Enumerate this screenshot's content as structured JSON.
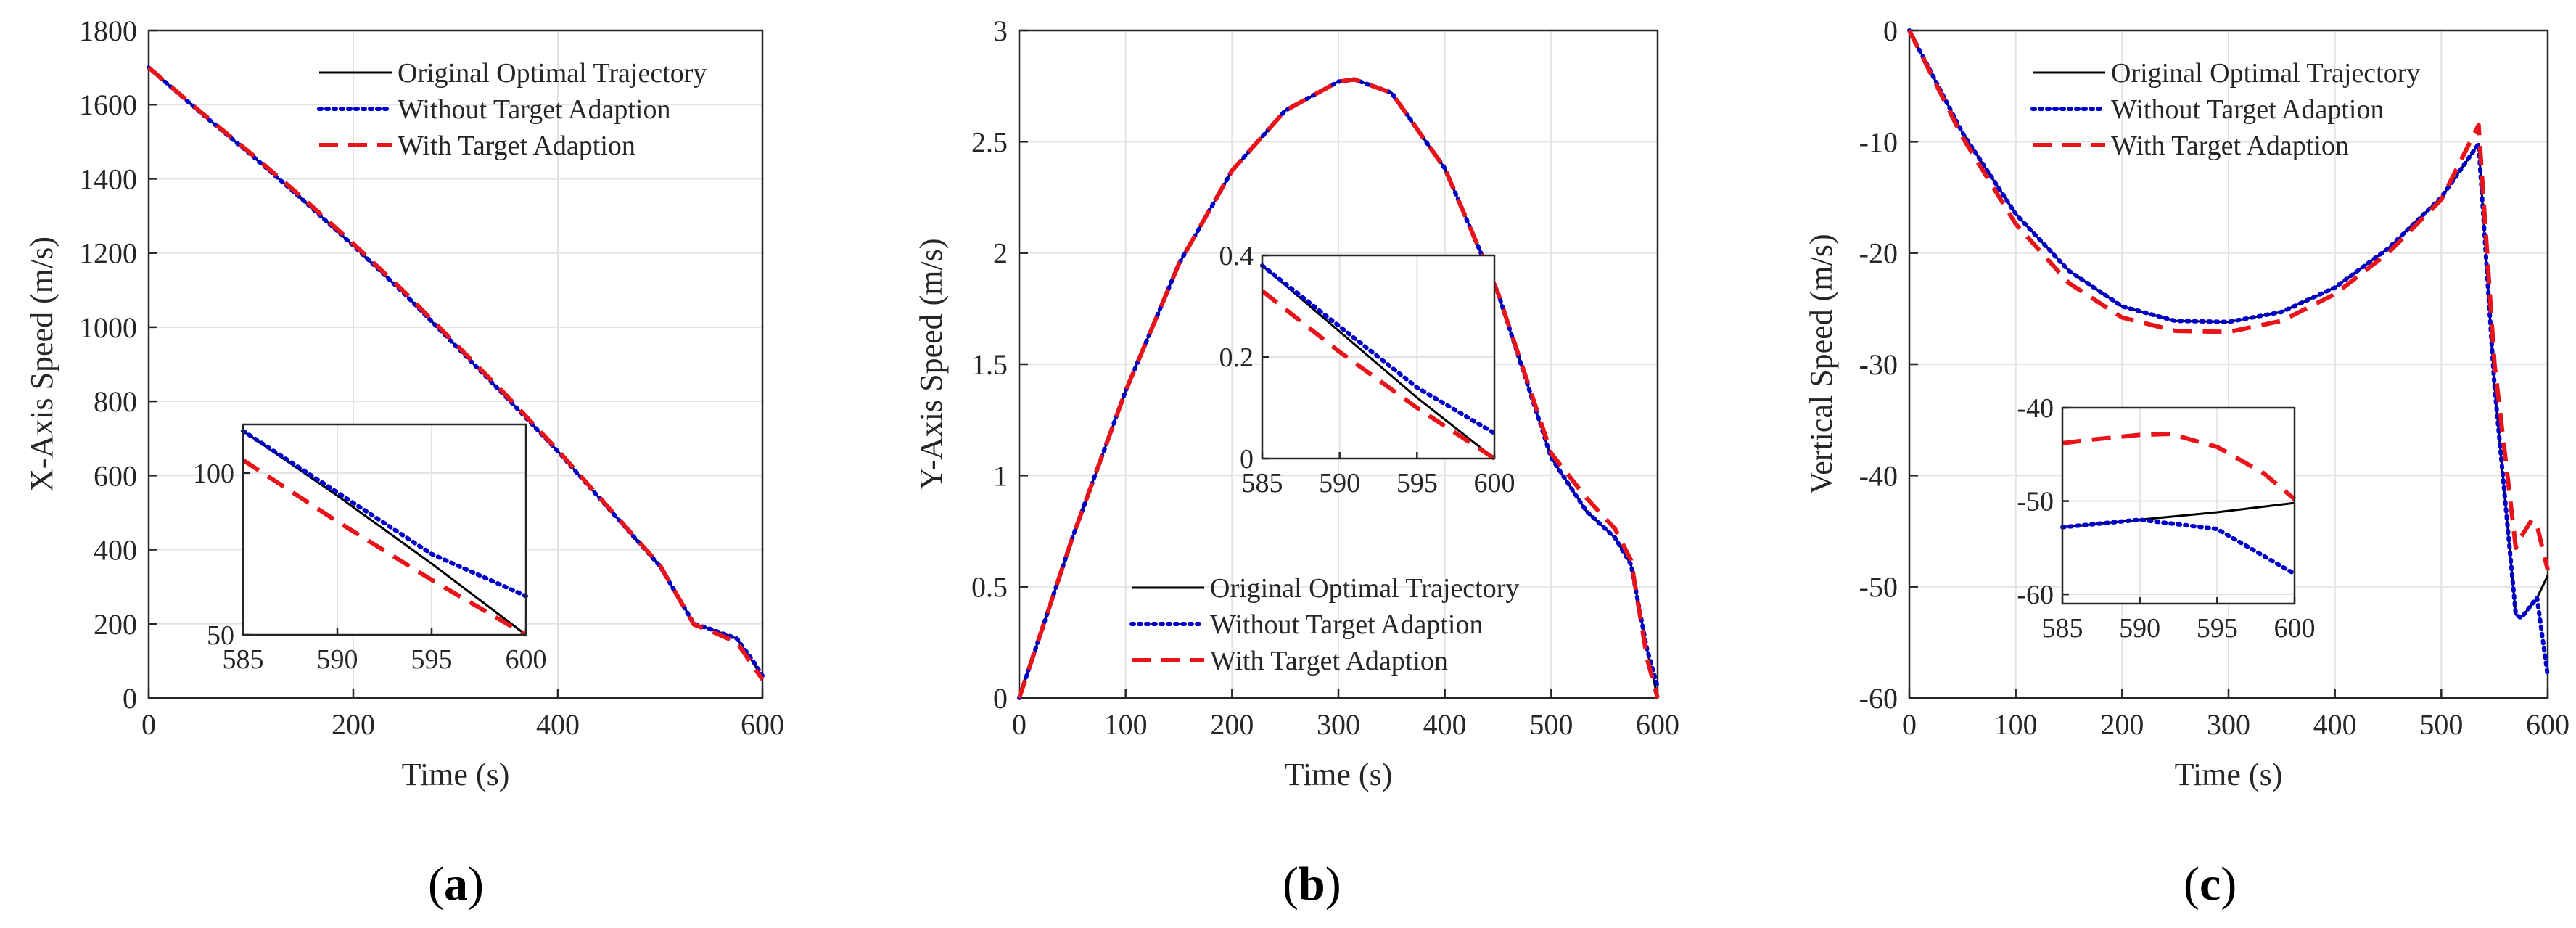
{
  "colors": {
    "original": "#000000",
    "without": "#0000cc",
    "with": "#e8141a",
    "grid": "#e3e3e3",
    "axis": "#262626"
  },
  "legend": [
    {
      "key": "original",
      "label": "Original Optimal Trajectory",
      "style": "solid"
    },
    {
      "key": "without",
      "label": "Without Target Adaption",
      "style": "dotted"
    },
    {
      "key": "with",
      "label": "With Target Adaption",
      "style": "dashed"
    }
  ],
  "panels": [
    {
      "open": "(",
      "letter": "a",
      "close": ")"
    },
    {
      "open": "(",
      "letter": "b",
      "close": ")"
    },
    {
      "open": "(",
      "letter": "c",
      "close": ")"
    }
  ],
  "chart_data": [
    {
      "type": "line",
      "xlabel": "Time (s)",
      "ylabel": "X-Axis Speed (m/s)",
      "xlim": [
        0,
        600
      ],
      "ylim": [
        0,
        1800
      ],
      "xticks": [
        0,
        200,
        400,
        600
      ],
      "yticks": [
        0,
        200,
        400,
        600,
        800,
        1000,
        1200,
        1400,
        1600,
        1800
      ],
      "grid": true,
      "legend_position": "top-right",
      "series": [
        {
          "name": "Original Optimal Trajectory",
          "key": "original",
          "x": [
            0,
            50,
            100,
            150,
            200,
            250,
            300,
            350,
            400,
            450,
            500,
            533,
            550,
            575,
            590,
            600
          ],
          "y": [
            1700,
            1580,
            1465,
            1345,
            1220,
            1090,
            950,
            810,
            665,
            510,
            355,
            200,
            185,
            160,
            100,
            55
          ]
        },
        {
          "name": "Without Target Adaption",
          "key": "without",
          "x": [
            0,
            50,
            100,
            150,
            200,
            250,
            300,
            350,
            400,
            450,
            500,
            533,
            550,
            575,
            590,
            600
          ],
          "y": [
            1700,
            1580,
            1465,
            1345,
            1220,
            1090,
            950,
            810,
            665,
            510,
            355,
            200,
            185,
            160,
            103,
            60
          ]
        },
        {
          "name": "With Target Adaption",
          "key": "with",
          "x": [
            0,
            50,
            100,
            150,
            200,
            250,
            300,
            350,
            400,
            450,
            500,
            533,
            550,
            575,
            590,
            600
          ],
          "y": [
            1700,
            1582,
            1468,
            1350,
            1225,
            1095,
            955,
            815,
            668,
            512,
            357,
            198,
            180,
            150,
            90,
            50
          ]
        }
      ],
      "inset": {
        "xlim": [
          585,
          600
        ],
        "ylim": [
          50,
          115
        ],
        "xticks": [
          585,
          590,
          595,
          600
        ],
        "yticks": [
          50,
          100
        ],
        "series": [
          {
            "key": "original",
            "x": [
              585,
              590,
              595,
              600
            ],
            "y": [
              113,
              93,
              72,
              50
            ]
          },
          {
            "key": "without",
            "x": [
              585,
              590,
              595,
              600
            ],
            "y": [
              113,
              94,
              75,
              62
            ]
          },
          {
            "key": "with",
            "x": [
              585,
              590,
              595,
              600
            ],
            "y": [
              104,
              85,
              67,
              50
            ]
          }
        ]
      }
    },
    {
      "type": "line",
      "xlabel": "Time (s)",
      "ylabel": "Y-Axis Speed (m/s)",
      "xlim": [
        0,
        600
      ],
      "ylim": [
        0,
        3
      ],
      "xticks": [
        0,
        100,
        200,
        300,
        400,
        500,
        600
      ],
      "yticks": [
        0,
        0.5,
        1,
        1.5,
        2,
        2.5,
        3
      ],
      "grid": true,
      "legend_position": "bottom-right",
      "series": [
        {
          "name": "Original Optimal Trajectory",
          "key": "original",
          "x": [
            0,
            50,
            100,
            150,
            200,
            250,
            300,
            315,
            350,
            400,
            450,
            500,
            533,
            560,
            575,
            590,
            600
          ],
          "y": [
            0,
            0.72,
            1.38,
            1.95,
            2.37,
            2.64,
            2.77,
            2.78,
            2.72,
            2.38,
            1.82,
            1.08,
            0.84,
            0.72,
            0.6,
            0.22,
            0.0
          ]
        },
        {
          "name": "Without Target Adaption",
          "key": "without",
          "x": [
            0,
            50,
            100,
            150,
            200,
            250,
            300,
            315,
            350,
            400,
            450,
            500,
            533,
            560,
            575,
            590,
            600
          ],
          "y": [
            0,
            0.72,
            1.38,
            1.95,
            2.37,
            2.64,
            2.77,
            2.78,
            2.72,
            2.38,
            1.82,
            1.08,
            0.84,
            0.72,
            0.6,
            0.22,
            0.05
          ]
        },
        {
          "name": "With Target Adaption",
          "key": "with",
          "x": [
            0,
            50,
            100,
            150,
            200,
            250,
            300,
            315,
            350,
            400,
            450,
            500,
            533,
            560,
            575,
            590,
            600
          ],
          "y": [
            0,
            0.72,
            1.38,
            1.95,
            2.37,
            2.64,
            2.77,
            2.78,
            2.72,
            2.38,
            1.82,
            1.1,
            0.9,
            0.76,
            0.62,
            0.18,
            0.0
          ]
        }
      ],
      "inset": {
        "xlim": [
          585,
          600
        ],
        "ylim": [
          0,
          0.4
        ],
        "xticks": [
          585,
          590,
          595,
          600
        ],
        "yticks": [
          0,
          0.2,
          0.4
        ],
        "series": [
          {
            "key": "original",
            "x": [
              585,
              590,
              595,
              600
            ],
            "y": [
              0.38,
              0.25,
              0.12,
              0.0
            ]
          },
          {
            "key": "without",
            "x": [
              585,
              590,
              595,
              600
            ],
            "y": [
              0.38,
              0.26,
              0.14,
              0.05
            ]
          },
          {
            "key": "with",
            "x": [
              585,
              590,
              595,
              600
            ],
            "y": [
              0.33,
              0.21,
              0.1,
              0.0
            ]
          }
        ]
      }
    },
    {
      "type": "line",
      "xlabel": "Time (s)",
      "ylabel": "Vertical Speed (m/s)",
      "xlim": [
        0,
        600
      ],
      "ylim": [
        -60,
        0
      ],
      "xticks": [
        0,
        100,
        200,
        300,
        400,
        500,
        600
      ],
      "yticks": [
        0,
        -10,
        -20,
        -30,
        -40,
        -50,
        -60
      ],
      "grid": true,
      "legend_position": "top-left",
      "series": [
        {
          "name": "Original Optimal Trajectory",
          "key": "original",
          "x": [
            0,
            50,
            100,
            150,
            200,
            250,
            300,
            350,
            400,
            450,
            500,
            535,
            550,
            570,
            575,
            590,
            600
          ],
          "y": [
            0,
            -9.2,
            -16.5,
            -21.6,
            -24.8,
            -26.1,
            -26.2,
            -25.3,
            -23.1,
            -19.6,
            -15,
            -10.2,
            -32,
            -52.5,
            -52.8,
            -51,
            -49
          ]
        },
        {
          "name": "Without Target Adaption",
          "key": "without",
          "x": [
            0,
            50,
            100,
            150,
            200,
            250,
            300,
            350,
            400,
            450,
            500,
            535,
            550,
            570,
            575,
            590,
            600
          ],
          "y": [
            0,
            -9.2,
            -16.5,
            -21.6,
            -24.8,
            -26.1,
            -26.2,
            -25.3,
            -23.1,
            -19.6,
            -15,
            -10.2,
            -32,
            -52.5,
            -52.8,
            -51,
            -58
          ]
        },
        {
          "name": "With Target Adaption",
          "key": "with",
          "x": [
            0,
            50,
            100,
            150,
            200,
            250,
            300,
            350,
            400,
            450,
            500,
            535,
            550,
            570,
            575,
            585,
            590,
            600
          ],
          "y": [
            0,
            -9.6,
            -17.4,
            -22.7,
            -25.8,
            -27.0,
            -27.1,
            -26.1,
            -23.7,
            -20.0,
            -15.2,
            -8.5,
            -30,
            -46.5,
            -45.5,
            -44,
            -44.5,
            -48.5
          ]
        }
      ],
      "inset": {
        "xlim": [
          585,
          600
        ],
        "ylim": [
          -61,
          -40
        ],
        "xticks": [
          585,
          590,
          595,
          600
        ],
        "yticks": [
          -40,
          -50,
          -60
        ],
        "series": [
          {
            "key": "original",
            "x": [
              585,
              590,
              595,
              600
            ],
            "y": [
              -52.8,
              -52.0,
              -51.2,
              -50.2
            ]
          },
          {
            "key": "without",
            "x": [
              585,
              590,
              595,
              600
            ],
            "y": [
              -52.8,
              -52.0,
              -53.0,
              -57.8
            ]
          },
          {
            "key": "with",
            "x": [
              585,
              587,
              590,
              592,
              595,
              598,
              600
            ],
            "y": [
              -43.8,
              -43.4,
              -42.9,
              -42.8,
              -44.2,
              -47.0,
              -49.8
            ]
          }
        ]
      }
    }
  ]
}
